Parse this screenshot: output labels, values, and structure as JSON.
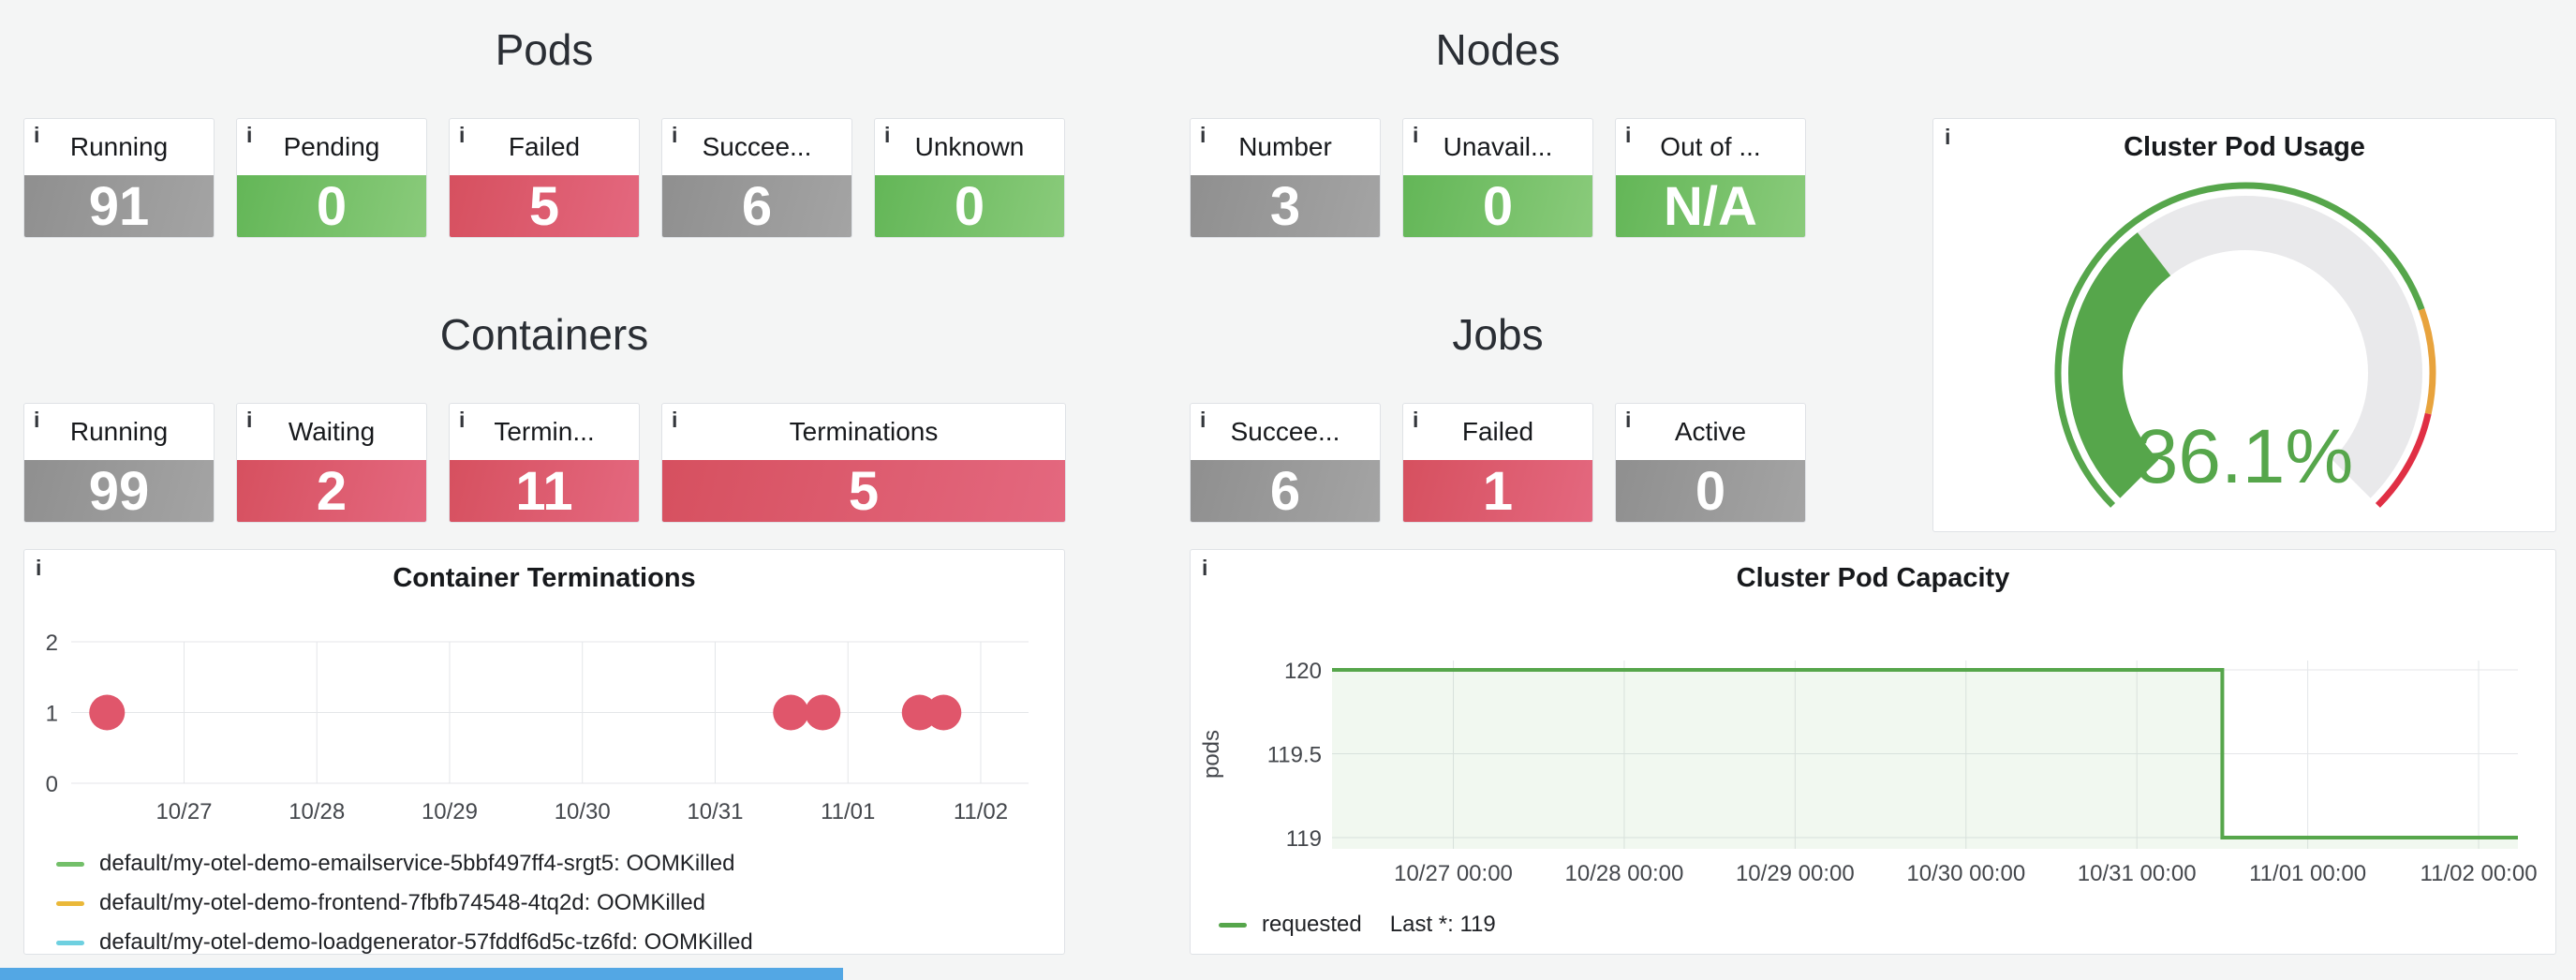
{
  "icons": {
    "info": "i"
  },
  "colors": {
    "page_bg": "#f4f5f5",
    "panel_bg": "#ffffff",
    "panel_border": "#dfe2e6",
    "grid": "#e4e6e9",
    "axis_text": "#44474c",
    "legend_text": "#202226",
    "clipped_bar": "#53a7e4"
  },
  "stat_colors": {
    "gray": [
      "#8f8f8f",
      "#a4a4a4"
    ],
    "green": [
      "#63b657",
      "#8acb7b"
    ],
    "red": [
      "#d6505f",
      "#e4687f"
    ]
  },
  "sections": {
    "pods": {
      "title": "Pods",
      "stats": [
        {
          "label": "Running",
          "value": "91",
          "color": "gray"
        },
        {
          "label": "Pending",
          "value": "0",
          "color": "green"
        },
        {
          "label": "Failed",
          "value": "5",
          "color": "red"
        },
        {
          "label": "Succee...",
          "value": "6",
          "color": "gray"
        },
        {
          "label": "Unknown",
          "value": "0",
          "color": "green"
        }
      ]
    },
    "nodes": {
      "title": "Nodes",
      "stats": [
        {
          "label": "Number",
          "value": "3",
          "color": "gray"
        },
        {
          "label": "Unavail...",
          "value": "0",
          "color": "green"
        },
        {
          "label": "Out of ...",
          "value": "N/A",
          "color": "green"
        }
      ]
    },
    "containers": {
      "title": "Containers",
      "stats": [
        {
          "label": "Running",
          "value": "99",
          "color": "gray"
        },
        {
          "label": "Waiting",
          "value": "2",
          "color": "red"
        },
        {
          "label": "Termin...",
          "value": "11",
          "color": "red"
        },
        {
          "label": "Terminations",
          "value": "5",
          "color": "red",
          "wide": true
        }
      ]
    },
    "jobs": {
      "title": "Jobs",
      "stats": [
        {
          "label": "Succee...",
          "value": "6",
          "color": "gray"
        },
        {
          "label": "Failed",
          "value": "1",
          "color": "red"
        },
        {
          "label": "Active",
          "value": "0",
          "color": "gray"
        }
      ]
    }
  },
  "gauge": {
    "title": "Cluster Pod Usage",
    "value_text": "36.1%",
    "percent": 36.1,
    "min": 0,
    "max": 100,
    "color": "#56a64b",
    "track_color": "#e9e9eb",
    "thresholds": [
      {
        "from": 0,
        "to": 76,
        "color": "#56a64b"
      },
      {
        "from": 76,
        "to": 88,
        "color": "#e8a33d"
      },
      {
        "from": 88,
        "to": 100,
        "color": "#e02f44"
      }
    ]
  },
  "terminations": {
    "title": "Container Terminations",
    "point_color": "#e0566b",
    "ylim": [
      0,
      2
    ],
    "yticks": [
      2,
      1,
      0
    ],
    "x_domain": [
      0.15,
      7.36
    ],
    "xticks": [
      {
        "t": 1,
        "label": "10/27"
      },
      {
        "t": 2,
        "label": "10/28"
      },
      {
        "t": 3,
        "label": "10/29"
      },
      {
        "t": 4,
        "label": "10/30"
      },
      {
        "t": 5,
        "label": "10/31"
      },
      {
        "t": 6,
        "label": "11/01"
      },
      {
        "t": 7,
        "label": "11/02"
      }
    ],
    "points": [
      {
        "t": 0.42,
        "v": 1
      },
      {
        "t": 5.57,
        "v": 1
      },
      {
        "t": 5.81,
        "v": 1
      },
      {
        "t": 6.54,
        "v": 1
      },
      {
        "t": 6.72,
        "v": 1
      }
    ],
    "legend": [
      {
        "color": "#73bf69",
        "label": "default/my-otel-demo-emailservice-5bbf497ff4-srgt5: OOMKilled"
      },
      {
        "color": "#eab839",
        "label": "default/my-otel-demo-frontend-7fbfb74548-4tq2d: OOMKilled"
      },
      {
        "color": "#6ed0e0",
        "label": "default/my-otel-demo-loadgenerator-57fddf6d5c-tz6fd: OOMKilled"
      }
    ]
  },
  "capacity": {
    "title": "Cluster Pod Capacity",
    "ylabel": "pods",
    "line_color": "#56a64b",
    "fill_color": "rgba(115,191,105,0.10)",
    "yticks": [
      {
        "v": 120,
        "label": "120"
      },
      {
        "v": 119.5,
        "label": "119.5"
      },
      {
        "v": 119,
        "label": "119"
      }
    ],
    "x_domain": [
      0.29,
      7.23
    ],
    "xticks": [
      {
        "t": 1,
        "label": "10/27 00:00"
      },
      {
        "t": 2,
        "label": "10/28 00:00"
      },
      {
        "t": 3,
        "label": "10/29 00:00"
      },
      {
        "t": 4,
        "label": "10/30 00:00"
      },
      {
        "t": 5,
        "label": "10/31 00:00"
      },
      {
        "t": 6,
        "label": "11/01 00:00"
      },
      {
        "t": 7,
        "label": "11/02 00:00"
      }
    ],
    "steps": [
      {
        "t": 0.29,
        "v": 120
      },
      {
        "t": 5.5,
        "v": 120
      },
      {
        "t": 5.5,
        "v": 119
      },
      {
        "t": 7.23,
        "v": 119
      }
    ],
    "legend": {
      "name": "requested",
      "last": "Last *: 119"
    }
  },
  "chart_data": [
    {
      "type": "gauge",
      "title": "Cluster Pod Usage",
      "value": 36.1,
      "unit": "%",
      "min": 0,
      "max": 100,
      "thresholds": [
        {
          "color": "#56a64b",
          "from": 0
        },
        {
          "color": "#e8a33d",
          "from": 76
        },
        {
          "color": "#e02f44",
          "from": 88
        }
      ]
    },
    {
      "type": "scatter",
      "title": "Container Terminations",
      "ylim": [
        0,
        2
      ],
      "yticks": [
        0,
        1,
        2
      ],
      "xticks": [
        "10/27",
        "10/28",
        "10/29",
        "10/30",
        "10/31",
        "11/01",
        "11/02"
      ],
      "points": [
        {
          "x": "10/26 ~10:00",
          "y": 1
        },
        {
          "x": "10/31 ~14:00",
          "y": 1
        },
        {
          "x": "10/31 ~19:00",
          "y": 1
        },
        {
          "x": "11/01 ~13:00",
          "y": 1
        },
        {
          "x": "11/01 ~17:00",
          "y": 1
        }
      ],
      "legend": [
        "default/my-otel-demo-emailservice-5bbf497ff4-srgt5: OOMKilled",
        "default/my-otel-demo-frontend-7fbfb74548-4tq2d: OOMKilled",
        "default/my-otel-demo-loadgenerator-57fddf6d5c-tz6fd: OOMKilled"
      ],
      "legend_position": "bottom"
    },
    {
      "type": "line",
      "title": "Cluster Pod Capacity",
      "ylabel": "pods",
      "ylim": [
        119,
        120
      ],
      "yticks": [
        119,
        119.5,
        120
      ],
      "xticks": [
        "10/27 00:00",
        "10/28 00:00",
        "10/29 00:00",
        "10/30 00:00",
        "10/31 00:00",
        "11/01 00:00",
        "11/02 00:00"
      ],
      "series": [
        {
          "name": "requested",
          "step": true,
          "points": [
            [
              "10/26 ~07:00",
              120
            ],
            [
              "10/31 12:00",
              120
            ],
            [
              "10/31 12:00",
              119
            ],
            [
              "11/02 ~06:00",
              119
            ]
          ],
          "last": 119
        }
      ],
      "legend_position": "bottom"
    }
  ]
}
